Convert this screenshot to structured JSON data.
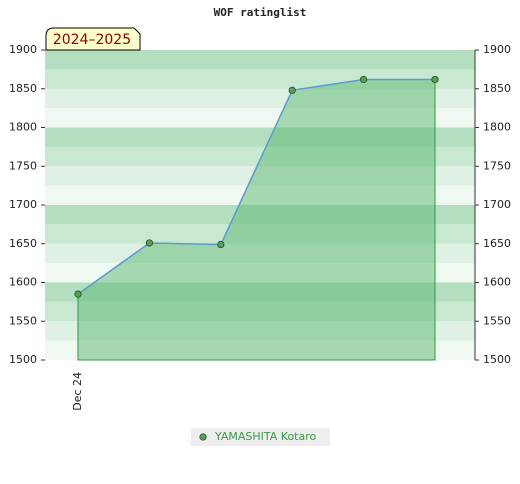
{
  "chart_data": {
    "type": "line",
    "title": "WOF ratinglist",
    "annotation": "2024–2025",
    "categories": [
      "Dec 24",
      null,
      null,
      null,
      null,
      null
    ],
    "series": [
      {
        "name": "YAMASHITA Kotaro",
        "color": "#5b9bd5",
        "fill": "#5cb870",
        "marker_color": "#5a9e5a",
        "values": [
          1585,
          1651,
          1649,
          1848,
          1862,
          1862
        ]
      }
    ],
    "ylim": [
      1500,
      1900
    ],
    "yticks": [
      1500,
      1550,
      1600,
      1650,
      1700,
      1750,
      1800,
      1850,
      1900
    ],
    "y2lim": [
      1500,
      1900
    ],
    "y2ticks": [
      1500,
      1550,
      1600,
      1650,
      1700,
      1750,
      1800,
      1850,
      1900
    ],
    "legend": "bottom"
  }
}
